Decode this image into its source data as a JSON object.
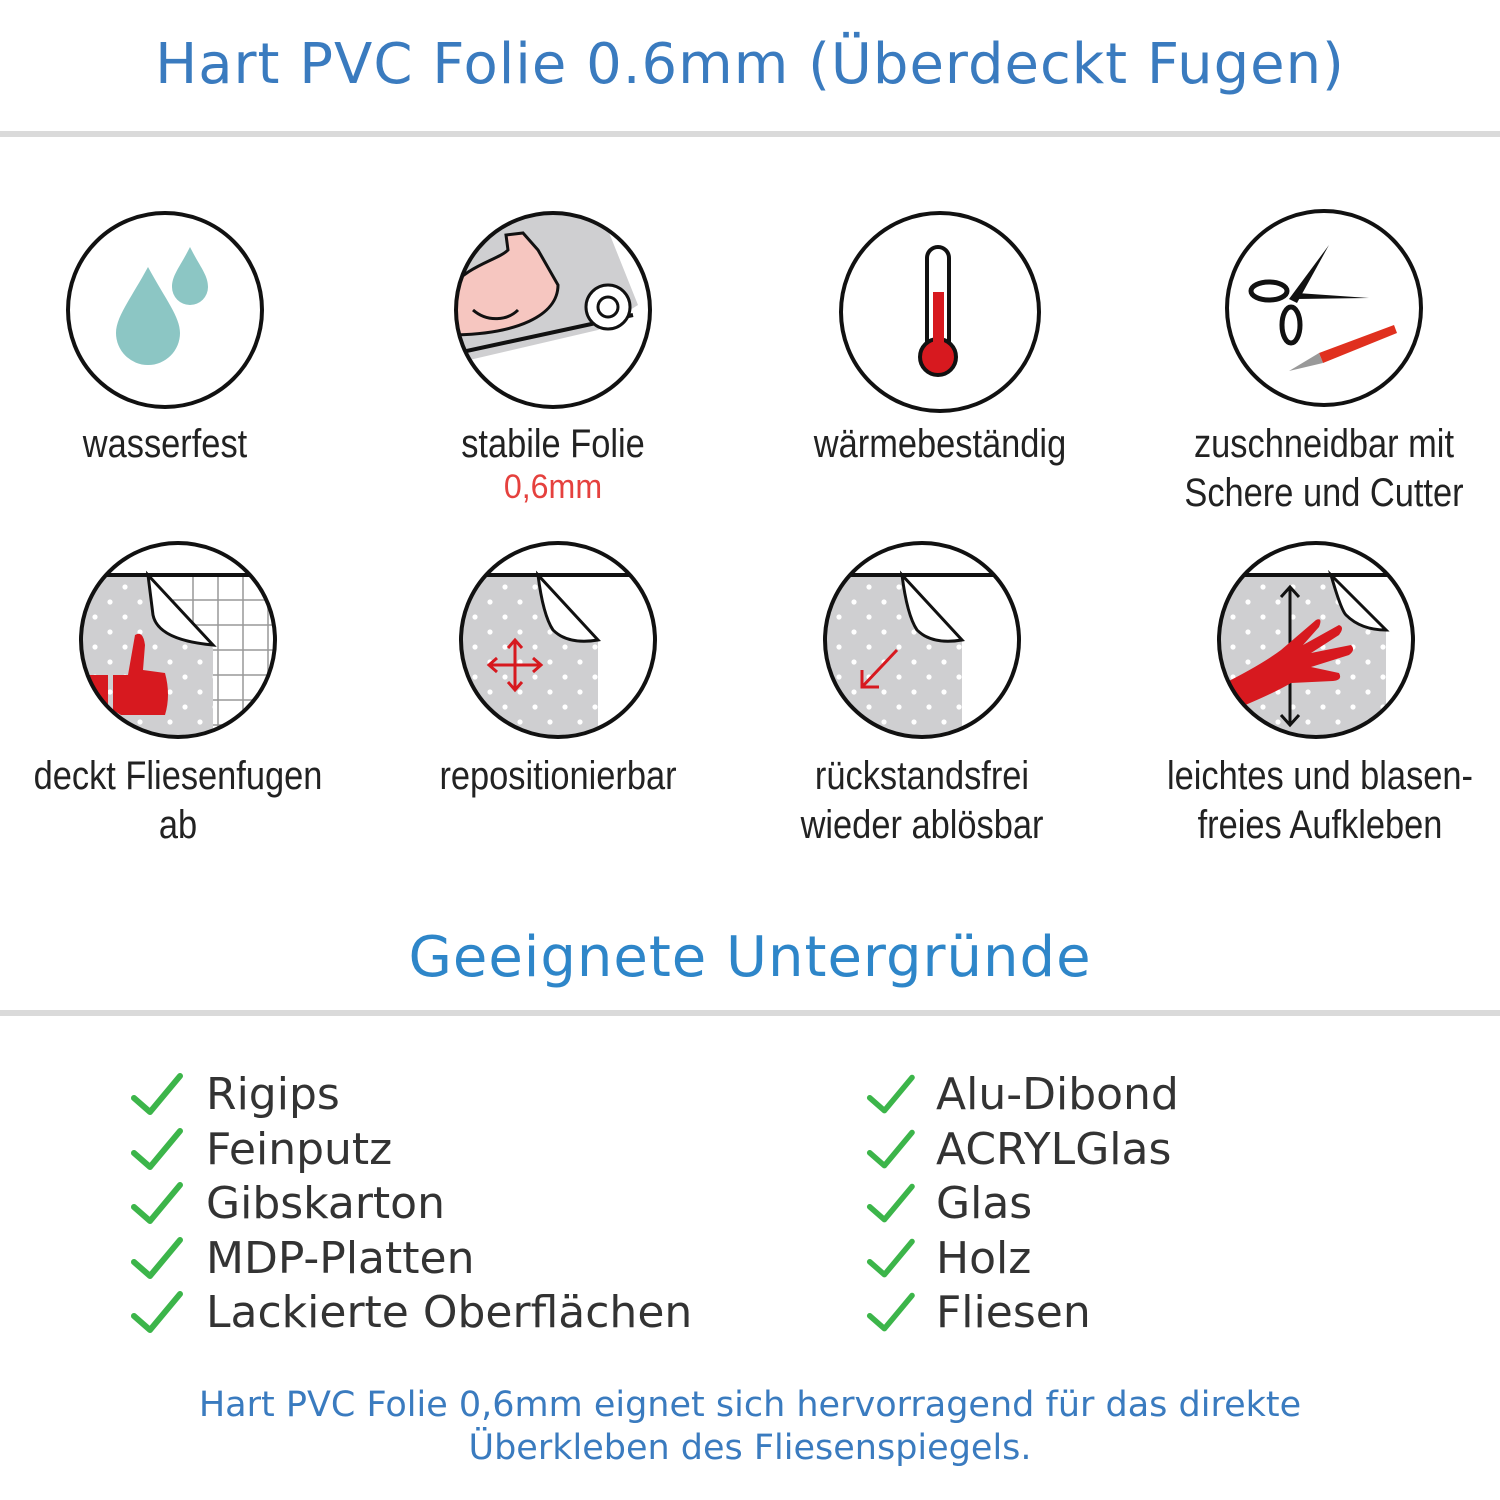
{
  "header": {
    "title": "Hart PVC Folie 0.6mm (Überdeckt Fugen)"
  },
  "features": [
    {
      "icon": "water-drops-icon",
      "label": "wasserfest",
      "sub": ""
    },
    {
      "icon": "strong-arm-icon",
      "label": "stabile Folie",
      "sub": "0,6mm"
    },
    {
      "icon": "thermometer-icon",
      "label": "wärmebeständig",
      "sub": ""
    },
    {
      "icon": "scissors-cutter-icon",
      "label": "zuschneidbar mit",
      "label2": "Schere und Cutter"
    },
    {
      "icon": "thumbs-up-tiles-icon",
      "label": "deckt Fliesenfugen ab"
    },
    {
      "icon": "move-arrows-icon",
      "label": "repositionierbar"
    },
    {
      "icon": "peel-arrow-icon",
      "label": "rückstandsfrei",
      "label2": "wieder ablösbar"
    },
    {
      "icon": "hand-smooth-icon",
      "label": "leichtes und blasen-",
      "label2": "freies Aufkleben"
    }
  ],
  "surfaces": {
    "title": "Geeignete Untergründe",
    "left": [
      "Rigips",
      "Feinputz",
      "Gibskarton",
      "MDP-Platten",
      "Lackierte Oberflächen"
    ],
    "right": [
      "Alu-Dibond",
      "ACRYLGlas",
      "Glas",
      "Holz",
      "Fliesen"
    ]
  },
  "footer": {
    "line1": "Hart PVC Folie 0,6mm eignet sich hervorragend für das direkte",
    "line2": "Überkleben des Fliesenspiegels."
  },
  "colors": {
    "title": "#3a7bbf",
    "section": "#2e86c9",
    "accent_red": "#d7191f",
    "check": "#3cb54a",
    "drop": "#8cc6c4",
    "sheet": "#cfcfd1"
  }
}
